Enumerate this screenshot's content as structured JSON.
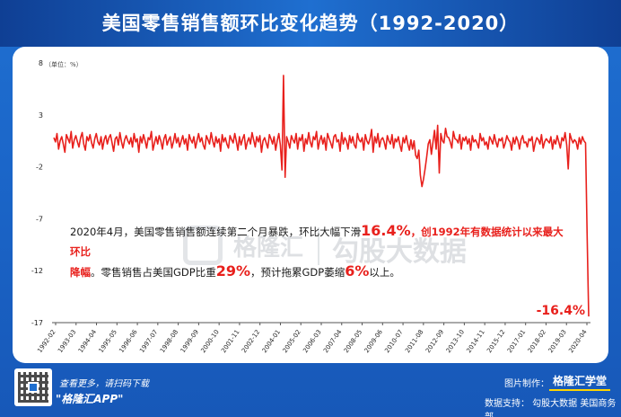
{
  "header": {
    "title": "美国零售销售额环比变化趋势（1992-2020）"
  },
  "watermark": {
    "brand": "格隆汇",
    "text": "勾股大数据"
  },
  "annotation": {
    "part1": "2020年4月，美国零售销售额连续第二个月暴跌，环比大幅下滑",
    "value1": "16.4%",
    "part2": "，创1992年有数据统计以来最大环比",
    "part3": "降幅",
    "part4": "。零售销售占美国GDP比重",
    "value2": "29%",
    "part5": "，预计拖累GDP萎缩",
    "value3": "6%",
    "part6": "以上。"
  },
  "footer": {
    "scan_text": "查看更多，请扫码下载",
    "app_text": "\"格隆汇APP\"",
    "made_by_label": "图片制作：",
    "made_by_brand": "格隆汇学堂",
    "data_source": "数据支持：  勾股大数据  美国商务部"
  },
  "colors": {
    "line": "#e8201c",
    "background": "#1f6fd0",
    "card": "#ffffff"
  },
  "chart_data": {
    "type": "line",
    "title": "美国零售销售额环比变化趋势（1992-2020）",
    "unit_label": "（单位：%）",
    "ylim": [
      -17,
      8
    ],
    "y_ticks": [
      8,
      3,
      -2,
      -7,
      -12,
      -17
    ],
    "x_tick_labels": [
      "1992-02",
      "1993-03",
      "1994-04",
      "1995-05",
      "1996-06",
      "1997-07",
      "1998-08",
      "1999-09",
      "2000-10",
      "2001-11",
      "2002-12",
      "2004-01",
      "2005-02",
      "2006-03",
      "2007-04",
      "2008-05",
      "2009-06",
      "2010-07",
      "2011-08",
      "2012-09",
      "2013-10",
      "2014-11",
      "2015-12",
      "2017-01",
      "2018-02",
      "2019-03",
      "2020-04"
    ],
    "grid": false,
    "last_point_label": "-16.4%",
    "series": [
      {
        "values": [
          0.8,
          0.4,
          1.2,
          -0.3,
          0.5,
          0.9,
          0.2,
          -0.6,
          1.1,
          0.7,
          0.3,
          1.4,
          -0.2,
          0.6,
          1.0,
          0.4,
          -0.1,
          0.8,
          1.3,
          0.2,
          -0.4,
          0.9,
          0.5,
          1.1,
          0.3,
          -0.2,
          0.7,
          1.2,
          0.4,
          0.1,
          0.9,
          -0.3,
          0.6,
          1.0,
          0.2,
          0.8,
          1.1,
          0.3,
          -0.5,
          0.7,
          0.9,
          0.1,
          1.3,
          0.4,
          -0.2,
          0.6,
          1.0,
          0.5,
          0.2,
          0.8,
          -0.1,
          1.2,
          0.4,
          0.7,
          -0.6,
          0.9,
          0.3,
          1.1,
          0.5,
          -0.2,
          0.8,
          0.6,
          1.4,
          -0.4,
          0.3,
          0.9,
          0.2,
          1.0,
          0.5,
          -0.3,
          0.7,
          1.1,
          0.1,
          0.6,
          0.9,
          -0.2,
          0.4,
          1.2,
          0.3,
          0.8,
          -0.1,
          0.5,
          1.0,
          0.2,
          0.7,
          -0.4,
          1.1,
          0.6,
          0.3,
          0.9,
          -0.2,
          0.5,
          1.2,
          0.4,
          0.8,
          0.1,
          -0.3,
          1.0,
          0.6,
          0.2,
          1.3,
          0.5,
          -0.1,
          0.9,
          0.3,
          0.7,
          -0.5,
          1.1,
          0.4,
          0.8,
          0.2,
          -0.2,
          1.0,
          0.6,
          0.3,
          1.2,
          0.5,
          -0.4,
          0.9,
          0.1,
          0.7,
          1.1,
          -0.3,
          0.4,
          0.8,
          0.2,
          1.3,
          0.6,
          -0.1,
          0.9,
          0.4,
          1.0,
          -0.6,
          0.5,
          0.8,
          0.3,
          -0.2,
          1.1,
          0.7,
          0.2,
          0.9,
          -0.4,
          0.5,
          1.2,
          0.1,
          -2.3,
          6.8,
          -3.0,
          0.9,
          0.4,
          -0.2,
          1.0,
          0.6,
          0.3,
          1.2,
          -0.3,
          0.8,
          0.5,
          1.1,
          -0.5,
          0.7,
          0.2,
          1.3,
          0.4,
          -0.1,
          0.9,
          0.6,
          1.4,
          -0.3,
          0.5,
          1.0,
          0.2,
          0.8,
          -0.4,
          1.2,
          0.7,
          0.3,
          -0.2,
          0.9,
          1.1,
          0.4,
          0.6,
          -0.5,
          1.3,
          0.2,
          0.8,
          0.5,
          -0.3,
          1.0,
          0.3,
          0.9,
          0.1,
          -0.2,
          1.2,
          0.6,
          0.4,
          0.8,
          -0.4,
          1.1,
          0.5,
          0.2,
          0.7,
          1.6,
          -0.6,
          0.9,
          0.3,
          1.2,
          -0.1,
          0.6,
          0.8,
          0.4,
          -0.3,
          1.0,
          0.5,
          0.2,
          1.1,
          -0.2,
          0.7,
          0.4,
          0.9,
          0.1,
          -0.5,
          0.8,
          0.3,
          1.0,
          0.2,
          -0.4,
          0.6,
          -0.3,
          0.5,
          -0.9,
          -1.2,
          -0.4,
          -2.8,
          -3.9,
          -3.2,
          -2.2,
          -1.1,
          0.2,
          0.6,
          -0.8,
          0.4,
          1.5,
          -0.3,
          2.0,
          -2.6,
          1.2,
          0.5,
          0.3,
          1.7,
          0.9,
          0.8,
          0.4,
          -0.2,
          1.4,
          0.7,
          0.6,
          0.3,
          1.1,
          -0.3,
          0.8,
          0.5,
          0.9,
          0.2,
          0.7,
          -0.4,
          1.0,
          0.4,
          0.6,
          0.3,
          -0.2,
          1.2,
          0.5,
          0.8,
          0.1,
          0.4,
          -0.3,
          0.9,
          0.6,
          0.2,
          1.1,
          0.4,
          -0.1,
          0.7,
          0.5,
          0.8,
          -0.2,
          0.3,
          1.0,
          0.6,
          0.4,
          -0.4,
          0.8,
          0.2,
          0.9,
          0.5,
          -0.3,
          0.6,
          1.0,
          0.3,
          0.4,
          -0.1,
          0.7,
          0.5,
          0.9,
          -0.5,
          0.3,
          0.8,
          0.6,
          0.2,
          1.1,
          -0.2,
          0.4,
          0.7,
          0.5,
          0.3,
          0.9,
          -0.3,
          0.6,
          0.2,
          1.0,
          0.4,
          -0.2,
          0.8,
          0.5,
          1.3,
          0.1,
          -2.2,
          1.2,
          0.7,
          0.3,
          0.6,
          0.4,
          -0.3,
          0.8,
          0.2,
          0.9,
          0.5,
          0.3,
          -8.3,
          -16.4
        ]
      }
    ]
  }
}
